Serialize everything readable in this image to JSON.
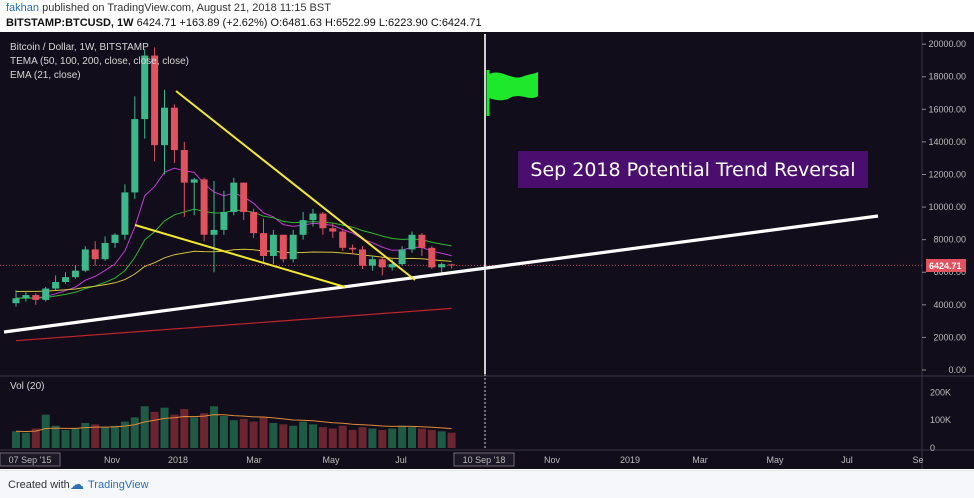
{
  "header": {
    "author": "fakhan",
    "published_text": "published on TradingView.com, August 21, 2018 11:15 BST",
    "symbol_line": "BITSTAMP:BTCUSD, 1W",
    "last": "6424.71",
    "change": "+163.89 (+2.62%)",
    "open": "O:6481.63",
    "high": "H:6522.99",
    "low": "L:6223.90",
    "close": "C:6424.71"
  },
  "chart_data": {
    "type": "candlestick",
    "title": "Bitcoin / Dollar, 1W, BITSTAMP",
    "indicators": [
      "TEMA (50, 100, 200, close, close, close)",
      "EMA (21, close)"
    ],
    "volume_label": "Vol (20)",
    "annotation": "Sep 2018 Potential Trend Reversal",
    "price_label": "6424.71",
    "y_ticks": [
      "20000.00",
      "18000.00",
      "16000.00",
      "14000.00",
      "12000.00",
      "10000.00",
      "8000.00",
      "6000.00",
      "4000.00",
      "2000.00",
      "0.00"
    ],
    "y_range": [
      0,
      20500
    ],
    "vol_ticks": [
      "200K",
      "100K",
      "0"
    ],
    "x_ticks": [
      "07 Sep '15",
      "Nov",
      "2018",
      "Mar",
      "May",
      "Jul",
      "10 Sep '18",
      "Nov",
      "2019",
      "Mar",
      "May",
      "Jul",
      "Se"
    ],
    "candles": [
      {
        "o": 4100,
        "c": 4400,
        "h": 4900,
        "l": 3900
      },
      {
        "o": 4400,
        "c": 4600,
        "h": 4800,
        "l": 4200
      },
      {
        "o": 4600,
        "c": 4300,
        "h": 4700,
        "l": 4000
      },
      {
        "o": 4300,
        "c": 5000,
        "h": 5100,
        "l": 4200
      },
      {
        "o": 5000,
        "c": 5400,
        "h": 5800,
        "l": 4900
      },
      {
        "o": 5400,
        "c": 5700,
        "h": 6000,
        "l": 5300
      },
      {
        "o": 5700,
        "c": 6100,
        "h": 6400,
        "l": 5600
      },
      {
        "o": 6100,
        "c": 7400,
        "h": 7600,
        "l": 6000
      },
      {
        "o": 7400,
        "c": 6800,
        "h": 7900,
        "l": 6400
      },
      {
        "o": 6800,
        "c": 7800,
        "h": 8200,
        "l": 6700
      },
      {
        "o": 7800,
        "c": 8300,
        "h": 8400,
        "l": 7500
      },
      {
        "o": 8300,
        "c": 10900,
        "h": 11400,
        "l": 8000
      },
      {
        "o": 10900,
        "c": 15400,
        "h": 16800,
        "l": 10500
      },
      {
        "o": 15400,
        "c": 19300,
        "h": 19700,
        "l": 14200
      },
      {
        "o": 19300,
        "c": 13800,
        "h": 19800,
        "l": 12800
      },
      {
        "o": 13800,
        "c": 16100,
        "h": 17200,
        "l": 12000
      },
      {
        "o": 16100,
        "c": 13500,
        "h": 16300,
        "l": 12700
      },
      {
        "o": 13500,
        "c": 11500,
        "h": 14000,
        "l": 9400
      },
      {
        "o": 11500,
        "c": 11700,
        "h": 11800,
        "l": 9500
      },
      {
        "o": 11700,
        "c": 8300,
        "h": 11800,
        "l": 7900
      },
      {
        "o": 8300,
        "c": 8600,
        "h": 11600,
        "l": 6000
      },
      {
        "o": 8600,
        "c": 9700,
        "h": 11000,
        "l": 8300
      },
      {
        "o": 9700,
        "c": 11500,
        "h": 11800,
        "l": 9500
      },
      {
        "o": 11500,
        "c": 9700,
        "h": 11500,
        "l": 9200
      },
      {
        "o": 9700,
        "c": 8400,
        "h": 9900,
        "l": 8100
      },
      {
        "o": 8400,
        "c": 7000,
        "h": 9300,
        "l": 6600
      },
      {
        "o": 7000,
        "c": 8300,
        "h": 8600,
        "l": 6500
      },
      {
        "o": 8300,
        "c": 6800,
        "h": 8300,
        "l": 6600
      },
      {
        "o": 6800,
        "c": 8300,
        "h": 8600,
        "l": 6600
      },
      {
        "o": 8300,
        "c": 9200,
        "h": 9700,
        "l": 8000
      },
      {
        "o": 9200,
        "c": 9600,
        "h": 9900,
        "l": 8800
      },
      {
        "o": 9600,
        "c": 8700,
        "h": 9700,
        "l": 8300
      },
      {
        "o": 8700,
        "c": 8500,
        "h": 9000,
        "l": 8100
      },
      {
        "o": 8500,
        "c": 7500,
        "h": 8600,
        "l": 7300
      },
      {
        "o": 7500,
        "c": 7400,
        "h": 7700,
        "l": 7100
      },
      {
        "o": 7400,
        "c": 6400,
        "h": 7600,
        "l": 6200
      },
      {
        "o": 6400,
        "c": 6800,
        "h": 7000,
        "l": 6100
      },
      {
        "o": 6800,
        "c": 6300,
        "h": 6900,
        "l": 5800
      },
      {
        "o": 6300,
        "c": 6500,
        "h": 6800,
        "l": 6100
      },
      {
        "o": 6500,
        "c": 7400,
        "h": 7600,
        "l": 6400
      },
      {
        "o": 7400,
        "c": 8300,
        "h": 8500,
        "l": 7200
      },
      {
        "o": 8300,
        "c": 7500,
        "h": 8400,
        "l": 7000
      },
      {
        "o": 7500,
        "c": 6300,
        "h": 7600,
        "l": 6200
      },
      {
        "o": 6300,
        "c": 6500,
        "h": 6600,
        "l": 5900
      },
      {
        "o": 6480,
        "c": 6425,
        "h": 6520,
        "l": 6220
      }
    ],
    "volumes": [
      60,
      55,
      70,
      120,
      80,
      65,
      70,
      90,
      85,
      75,
      80,
      95,
      110,
      150,
      130,
      145,
      120,
      140,
      110,
      125,
      150,
      115,
      100,
      105,
      95,
      110,
      90,
      85,
      80,
      95,
      85,
      75,
      70,
      80,
      65,
      75,
      70,
      65,
      70,
      80,
      75,
      70,
      65,
      60,
      55
    ],
    "grid": false
  },
  "colors": {
    "background": "#120d1a",
    "up": "#3db88a",
    "down": "#e0525e",
    "annotation_bg": "#4a0e6e",
    "flag": "#1ee82c"
  }
}
